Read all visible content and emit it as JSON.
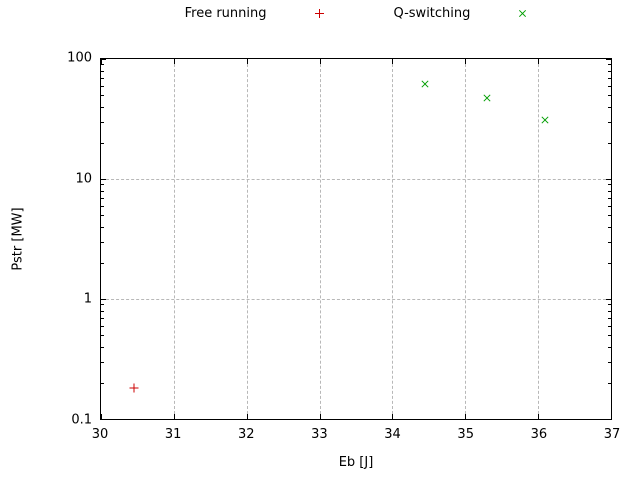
{
  "chart_data": {
    "type": "scatter",
    "title": "",
    "xlabel": "Eb [J]",
    "ylabel": "Pstr [MW]",
    "xlim": [
      30,
      37
    ],
    "ylim": [
      0.1,
      100
    ],
    "x_scale": "linear",
    "y_scale": "log",
    "x_ticks": [
      30,
      31,
      32,
      33,
      34,
      35,
      36,
      37
    ],
    "y_ticks": [
      0.1,
      1,
      10,
      100
    ],
    "grid": true,
    "grid_color": "#b8b8b8",
    "legend_position": "top-center",
    "background": "#ffffff",
    "series": [
      {
        "name": "Free running",
        "marker": "plus",
        "color": "#cc0000",
        "points": [
          [
            30.45,
            0.18
          ]
        ]
      },
      {
        "name": "Q-switching",
        "marker": "cross",
        "color": "#009e00",
        "points": [
          [
            34.45,
            62
          ],
          [
            35.3,
            47
          ],
          [
            36.1,
            31
          ]
        ]
      }
    ]
  }
}
